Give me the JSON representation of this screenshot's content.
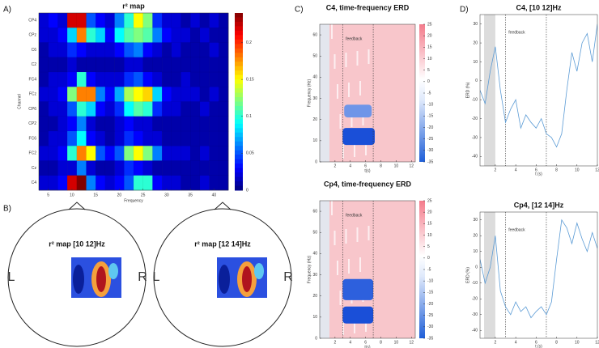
{
  "panel_labels": [
    "A)",
    "B)",
    "C)",
    "D)"
  ],
  "head_maps": [
    {
      "title": "r² map [10 12]Hz"
    },
    {
      "title": "r² map [12 14]Hz"
    }
  ],
  "head_side_labels": [
    "L",
    "R"
  ],
  "chart_data": [
    {
      "type": "heatmap",
      "title": "r² map",
      "xlabel": "Frequency",
      "ylabel": "Channel",
      "categories": [
        "CP4",
        "CPz",
        "C6",
        "C2",
        "FC4",
        "FCz",
        "CP6",
        "CP2",
        "FC6",
        "FC2",
        "Cz",
        "C4"
      ],
      "x": [
        4,
        6,
        8,
        10,
        12,
        14,
        16,
        18,
        20,
        22,
        24,
        26,
        28,
        30,
        32,
        34,
        36,
        38,
        40,
        42
      ],
      "xlim": [
        3,
        43
      ],
      "xticks": [
        5,
        10,
        15,
        20,
        25,
        30,
        35,
        40
      ],
      "clim": [
        0,
        0.24
      ],
      "cticks": [
        0,
        0.05,
        0.1,
        0.15,
        0.2
      ],
      "values": [
        [
          0.02,
          0.03,
          0.02,
          0.22,
          0.22,
          0.05,
          0.03,
          0.02,
          0.06,
          0.1,
          0.15,
          0.12,
          0.04,
          0.02,
          0.02,
          0.01,
          0.02,
          0.01,
          0.02,
          0.01
        ],
        [
          0.02,
          0.02,
          0.03,
          0.08,
          0.18,
          0.1,
          0.08,
          0.03,
          0.09,
          0.11,
          0.12,
          0.11,
          0.06,
          0.03,
          0.02,
          0.02,
          0.01,
          0.02,
          0.01,
          0.01
        ],
        [
          0.01,
          0.02,
          0.02,
          0.04,
          0.03,
          0.02,
          0.02,
          0.02,
          0.03,
          0.05,
          0.06,
          0.03,
          0.02,
          0.01,
          0.02,
          0.01,
          0.01,
          0.01,
          0.02,
          0.01
        ],
        [
          0.01,
          0.01,
          0.01,
          0.02,
          0.01,
          0.01,
          0.01,
          0.01,
          0.01,
          0.02,
          0.02,
          0.01,
          0.01,
          0.01,
          0.01,
          0.01,
          0.01,
          0.01,
          0.01,
          0.01
        ],
        [
          0.01,
          0.02,
          0.02,
          0.03,
          0.1,
          0.03,
          0.02,
          0.02,
          0.02,
          0.04,
          0.05,
          0.03,
          0.02,
          0.01,
          0.01,
          0.02,
          0.01,
          0.01,
          0.01,
          0.01
        ],
        [
          0.02,
          0.02,
          0.03,
          0.12,
          0.18,
          0.18,
          0.06,
          0.03,
          0.07,
          0.13,
          0.15,
          0.16,
          0.08,
          0.03,
          0.02,
          0.02,
          0.02,
          0.01,
          0.02,
          0.01
        ],
        [
          0.01,
          0.02,
          0.02,
          0.05,
          0.1,
          0.08,
          0.03,
          0.02,
          0.04,
          0.09,
          0.11,
          0.1,
          0.04,
          0.02,
          0.02,
          0.01,
          0.01,
          0.02,
          0.01,
          0.01
        ],
        [
          0.01,
          0.01,
          0.02,
          0.03,
          0.06,
          0.02,
          0.01,
          0.01,
          0.02,
          0.03,
          0.02,
          0.02,
          0.01,
          0.01,
          0.01,
          0.01,
          0.01,
          0.01,
          0.01,
          0.01
        ],
        [
          0.01,
          0.02,
          0.02,
          0.05,
          0.09,
          0.03,
          0.02,
          0.01,
          0.02,
          0.04,
          0.03,
          0.02,
          0.02,
          0.01,
          0.01,
          0.01,
          0.01,
          0.01,
          0.01,
          0.01
        ],
        [
          0.02,
          0.02,
          0.03,
          0.1,
          0.18,
          0.15,
          0.05,
          0.03,
          0.05,
          0.12,
          0.15,
          0.12,
          0.06,
          0.02,
          0.02,
          0.02,
          0.01,
          0.02,
          0.01,
          0.01
        ],
        [
          0.01,
          0.01,
          0.02,
          0.02,
          0.06,
          0.02,
          0.01,
          0.01,
          0.02,
          0.04,
          0.03,
          0.02,
          0.01,
          0.01,
          0.01,
          0.01,
          0.01,
          0.01,
          0.01,
          0.01
        ],
        [
          0.02,
          0.02,
          0.03,
          0.22,
          0.24,
          0.06,
          0.03,
          0.02,
          0.03,
          0.05,
          0.1,
          0.1,
          0.03,
          0.02,
          0.02,
          0.01,
          0.01,
          0.02,
          0.01,
          0.01
        ]
      ]
    },
    {
      "type": "time-frequency",
      "title": "C4, time-frequency ERD",
      "xlabel": "t(s)",
      "ylabel": "Frequency (Hz)",
      "annotation": "feedback",
      "xlim": [
        0,
        12.5
      ],
      "xticks": [
        2,
        4,
        6,
        8,
        10,
        12
      ],
      "ylim": [
        0,
        65
      ],
      "yticks": [
        0,
        10,
        20,
        30,
        40,
        50,
        60
      ],
      "clim": [
        -35,
        25
      ],
      "cticks": [
        -35,
        -30,
        -25,
        -20,
        -15,
        -10,
        -5,
        0,
        5,
        10,
        15,
        20,
        25
      ],
      "markers": [
        3,
        7
      ]
    },
    {
      "type": "time-frequency",
      "title": "Cp4, time-frequency ERD",
      "xlabel": "t(s)",
      "ylabel": "Frequency (Hz)",
      "annotation": "feedback",
      "xlim": [
        0,
        12.5
      ],
      "xticks": [
        2,
        4,
        6,
        8,
        10,
        12
      ],
      "ylim": [
        0,
        65
      ],
      "yticks": [
        0,
        10,
        20,
        30,
        40,
        50,
        60
      ],
      "clim": [
        -35,
        25
      ],
      "cticks": [
        -35,
        -30,
        -25,
        -20,
        -15,
        -10,
        -5,
        0,
        5,
        10,
        15,
        20,
        25
      ],
      "markers": [
        3,
        7
      ]
    },
    {
      "type": "line",
      "title": "C4, [10 12]Hz",
      "xlabel": "t (s)",
      "ylabel": "ERD (%)",
      "annotation": "feedback",
      "color": "#5b9bd5",
      "xlim": [
        0.5,
        12
      ],
      "xticks": [
        2,
        4,
        6,
        8,
        10,
        12
      ],
      "ylim": [
        -45,
        35
      ],
      "yticks": [
        -40,
        -30,
        -20,
        -10,
        0,
        10,
        20,
        30
      ],
      "shaded": [
        0.9,
        2
      ],
      "markers": [
        3,
        7
      ],
      "x": [
        0.5,
        1,
        1.5,
        2,
        2.5,
        3,
        3.5,
        4,
        4.5,
        5,
        5.5,
        6,
        6.5,
        7,
        7.5,
        8,
        8.5,
        9,
        9.5,
        10,
        10.5,
        11,
        11.5,
        12
      ],
      "values": [
        -5,
        -12,
        5,
        18,
        -5,
        -22,
        -15,
        -10,
        -25,
        -18,
        -22,
        -25,
        -20,
        -28,
        -30,
        -35,
        -28,
        -5,
        15,
        5,
        20,
        25,
        10,
        30
      ]
    },
    {
      "type": "line",
      "title": "Cp4, [12 14]Hz",
      "xlabel": "t (s)",
      "ylabel": "ERD (%)",
      "annotation": "feedback",
      "color": "#5b9bd5",
      "xlim": [
        0.5,
        12
      ],
      "xticks": [
        2,
        4,
        6,
        8,
        10,
        12
      ],
      "ylim": [
        -45,
        35
      ],
      "yticks": [
        -40,
        -30,
        -20,
        -10,
        0,
        10,
        20,
        30
      ],
      "shaded": [
        0.9,
        2
      ],
      "markers": [
        3,
        7
      ],
      "x": [
        0.5,
        1,
        1.5,
        2,
        2.5,
        3,
        3.5,
        4,
        4.5,
        5,
        5.5,
        6,
        6.5,
        7,
        7.5,
        8,
        8.5,
        9,
        9.5,
        10,
        10.5,
        11,
        11.5,
        12
      ],
      "values": [
        5,
        -10,
        0,
        20,
        -15,
        -25,
        -30,
        -22,
        -28,
        -25,
        -32,
        -28,
        -25,
        -30,
        -22,
        5,
        30,
        25,
        15,
        28,
        18,
        10,
        22,
        12
      ]
    }
  ]
}
